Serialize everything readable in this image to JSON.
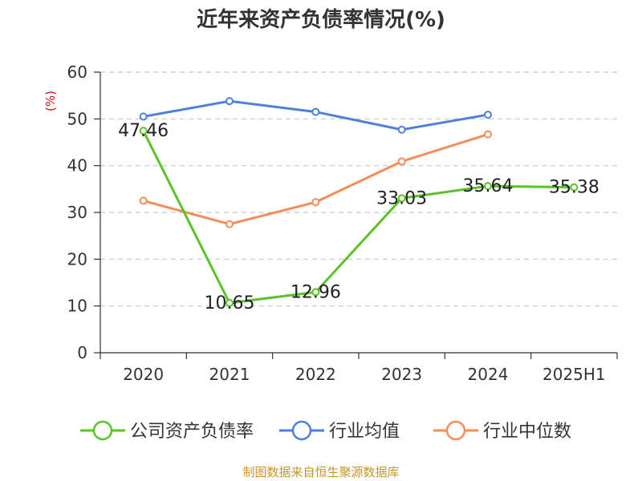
{
  "chart_data": {
    "type": "line",
    "title": "近年来资产负债率情况(%)",
    "ylabel": "(%)",
    "xlabel": "",
    "categories": [
      "2020",
      "2021",
      "2022",
      "2023",
      "2024",
      "2025H1"
    ],
    "ylim": [
      0,
      60
    ],
    "yticks": [
      0,
      10,
      20,
      30,
      40,
      50,
      60
    ],
    "grid": true,
    "legend_position": "bottom",
    "series": [
      {
        "name": "公司资产负债率",
        "color": "#5cc22a",
        "values": [
          47.46,
          10.65,
          12.96,
          33.03,
          35.64,
          35.38
        ],
        "labels": [
          "47.46",
          "10.65",
          "12.96",
          "33.03",
          "35.64",
          "35.38"
        ]
      },
      {
        "name": "行业均值",
        "color": "#4f7fdb",
        "values": [
          50.5,
          53.8,
          51.5,
          47.7,
          50.9,
          null
        ]
      },
      {
        "name": "行业中位数",
        "color": "#f58d5a",
        "values": [
          32.5,
          27.5,
          32.2,
          40.9,
          46.7,
          null
        ]
      }
    ],
    "source": "制图数据来自恒生聚源数据库",
    "colors": {
      "title": "#333333",
      "axis": "#333333",
      "grid": "#c8c8c8",
      "ylabel": "#d01010",
      "source": "#c8962a",
      "legend_text": "#333333"
    }
  }
}
